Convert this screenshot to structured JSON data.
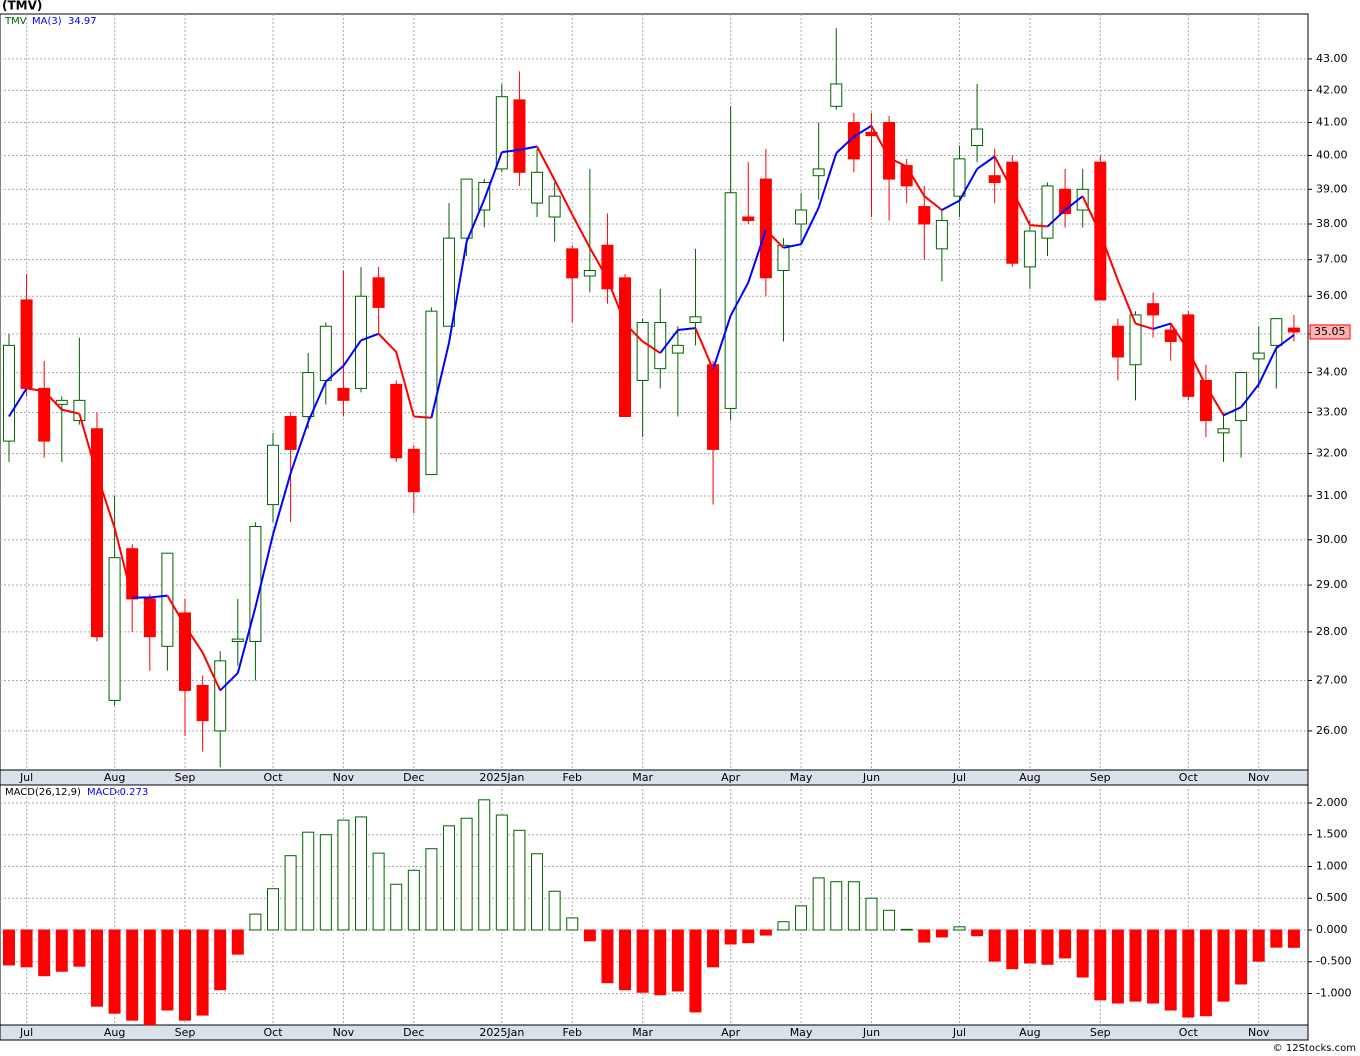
{
  "chart_data": [
    {
      "type": "candlestick",
      "title": "(TMV)",
      "name": "TMV",
      "log_scale": true,
      "grid": true,
      "up_color": "#006400",
      "down_color": "#ff0000",
      "categories": [
        null,
        null,
        null,
        null,
        null,
        null,
        null,
        null,
        null,
        null,
        null,
        null,
        null,
        null,
        null,
        null,
        null,
        null,
        null,
        null,
        null,
        null,
        null,
        null,
        null,
        null,
        null,
        null,
        null,
        null,
        null,
        null,
        null,
        null,
        null,
        null,
        null,
        null,
        null,
        null,
        null,
        null,
        null,
        null,
        null,
        null,
        null,
        null,
        null,
        null,
        null,
        null,
        null,
        null,
        null,
        null,
        null,
        null,
        null,
        null,
        null,
        null,
        null,
        null,
        null,
        null,
        null,
        null,
        null,
        null,
        null,
        null,
        null,
        null
      ],
      "open": [
        32.3,
        35.9,
        33.6,
        33.2,
        32.8,
        32.6,
        26.6,
        29.8,
        28.7,
        27.7,
        28.4,
        26.9,
        26.0,
        27.8,
        27.8,
        30.8,
        32.9,
        32.9,
        33.8,
        33.6,
        33.6,
        36.5,
        33.7,
        32.1,
        31.5,
        35.2,
        37.6,
        38.4,
        39.6,
        41.7,
        38.6,
        38.2,
        37.3,
        36.55,
        37.4,
        36.5,
        33.8,
        34.1,
        34.5,
        35.3,
        34.2,
        33.1,
        38.2,
        39.3,
        36.7,
        38.0,
        39.4,
        41.5,
        41.0,
        40.7,
        41.0,
        39.7,
        38.5,
        37.3,
        38.8,
        40.3,
        39.4,
        39.8,
        36.8,
        37.6,
        39.0,
        38.4,
        39.8,
        35.2,
        34.2,
        35.8,
        35.1,
        35.5,
        33.8,
        32.5,
        32.8,
        34.35,
        34.7,
        35.15
      ],
      "high": [
        35.0,
        36.6,
        34.3,
        33.4,
        34.9,
        33.0,
        31.0,
        29.9,
        28.8,
        29.7,
        28.7,
        27.1,
        27.6,
        28.7,
        30.4,
        32.5,
        33.0,
        34.5,
        35.3,
        36.7,
        36.8,
        36.8,
        33.8,
        32.2,
        35.7,
        38.6,
        39.3,
        39.3,
        42.2,
        42.6,
        40.2,
        39.2,
        37.4,
        39.6,
        38.3,
        36.6,
        35.4,
        36.2,
        35.2,
        37.3,
        34.3,
        41.5,
        39.8,
        40.2,
        37.6,
        38.9,
        41.0,
        44.0,
        41.3,
        41.3,
        41.2,
        39.9,
        39.1,
        38.4,
        40.3,
        42.2,
        40.2,
        40.0,
        38.1,
        39.2,
        39.6,
        39.6,
        40.0,
        35.4,
        35.6,
        36.1,
        35.3,
        35.6,
        34.2,
        33.0,
        34.0,
        35.2,
        35.4,
        35.5
      ],
      "low": [
        31.8,
        33.4,
        31.9,
        31.8,
        32.7,
        27.8,
        26.5,
        28.0,
        27.2,
        27.2,
        25.9,
        25.6,
        25.3,
        27.3,
        27.0,
        30.4,
        30.4,
        32.6,
        33.2,
        32.9,
        33.5,
        35.0,
        31.8,
        30.6,
        31.5,
        35.2,
        37.1,
        37.9,
        39.5,
        39.1,
        38.2,
        37.5,
        35.3,
        36.1,
        35.8,
        32.9,
        32.4,
        33.6,
        32.9,
        34.7,
        30.8,
        32.8,
        38.0,
        36.0,
        34.8,
        37.4,
        38.7,
        41.4,
        39.5,
        38.2,
        38.1,
        38.6,
        37.0,
        36.4,
        38.2,
        39.8,
        38.6,
        36.8,
        36.2,
        37.1,
        37.9,
        37.9,
        35.9,
        33.8,
        33.3,
        34.9,
        34.3,
        33.3,
        32.4,
        31.8,
        31.9,
        33.6,
        33.6,
        34.8
      ],
      "close": [
        34.7,
        33.6,
        32.3,
        33.3,
        33.3,
        27.9,
        29.6,
        28.7,
        27.9,
        29.7,
        26.8,
        26.2,
        27.4,
        27.85,
        30.3,
        32.2,
        32.1,
        34.0,
        35.2,
        33.3,
        36.0,
        35.7,
        31.9,
        31.1,
        35.6,
        37.6,
        39.3,
        39.2,
        41.8,
        39.5,
        39.5,
        38.8,
        36.5,
        36.7,
        36.2,
        32.9,
        35.3,
        35.3,
        34.7,
        35.45,
        32.1,
        38.9,
        38.1,
        36.5,
        37.4,
        38.4,
        39.6,
        42.2,
        39.9,
        40.6,
        39.3,
        39.1,
        38.0,
        38.1,
        39.9,
        40.8,
        39.2,
        36.9,
        37.8,
        39.1,
        38.3,
        39.0,
        35.9,
        34.4,
        35.5,
        35.5,
        34.8,
        33.4,
        32.8,
        32.6,
        34.0,
        34.5,
        35.4,
        35.05
      ],
      "ma": {
        "name": "MA(3)",
        "rise_color": "#0000ff",
        "fall_color": "#ff0000",
        "values": [
          32.9,
          33.6,
          33.53,
          33.07,
          32.97,
          31.5,
          30.27,
          28.73,
          28.73,
          28.77,
          28.13,
          27.57,
          26.8,
          27.15,
          28.52,
          30.12,
          31.53,
          32.77,
          33.77,
          34.17,
          34.83,
          35.0,
          34.53,
          32.9,
          32.87,
          34.77,
          37.5,
          38.7,
          40.1,
          40.17,
          40.27,
          39.27,
          38.27,
          37.33,
          36.47,
          35.27,
          34.8,
          34.5,
          35.1,
          35.15,
          34.08,
          35.48,
          36.37,
          37.83,
          37.33,
          37.43,
          38.47,
          40.07,
          40.57,
          40.9,
          39.93,
          39.67,
          38.8,
          38.4,
          38.67,
          39.6,
          39.97,
          38.97,
          37.97,
          37.93,
          38.4,
          38.8,
          37.73,
          36.43,
          35.27,
          35.13,
          35.27,
          34.57,
          33.67,
          32.93,
          33.13,
          33.7,
          34.63,
          34.97
        ]
      },
      "xlim": [
        -0.51,
        73.8
      ],
      "xticks": [
        {
          "value": 1,
          "label": "Jul"
        },
        {
          "value": 6,
          "label": "Aug"
        },
        {
          "value": 10,
          "label": "Sep"
        },
        {
          "value": 15,
          "label": "Oct"
        },
        {
          "value": 19,
          "label": "Nov"
        },
        {
          "value": 23,
          "label": "Dec"
        },
        {
          "value": 28,
          "label": "2025Jan"
        },
        {
          "value": 32,
          "label": "Feb"
        },
        {
          "value": 36,
          "label": "Mar"
        },
        {
          "value": 41,
          "label": "Apr"
        },
        {
          "value": 45,
          "label": "May"
        },
        {
          "value": 49,
          "label": "Jun"
        },
        {
          "value": 54,
          "label": "Jul"
        },
        {
          "value": 58,
          "label": "Aug"
        },
        {
          "value": 62,
          "label": "Sep"
        },
        {
          "value": 67,
          "label": "Oct"
        },
        {
          "value": 71,
          "label": "Nov"
        }
      ],
      "ylim": [
        25.25,
        44.47
      ],
      "yticks": [
        {
          "value": 26,
          "label": "26.00"
        },
        {
          "value": 27,
          "label": "27.00"
        },
        {
          "value": 28,
          "label": "28.00"
        },
        {
          "value": 29,
          "label": "29.00"
        },
        {
          "value": 30,
          "label": "30.00"
        },
        {
          "value": 31,
          "label": "31.00"
        },
        {
          "value": 32,
          "label": "32.00"
        },
        {
          "value": 33,
          "label": "33.00"
        },
        {
          "value": 34,
          "label": "34.00"
        },
        {
          "value": 35,
          "label": "35.00"
        },
        {
          "value": 36,
          "label": "36.00"
        },
        {
          "value": 37,
          "label": "37.00"
        },
        {
          "value": 38,
          "label": "38.00"
        },
        {
          "value": 39,
          "label": "39.00"
        },
        {
          "value": 40,
          "label": "40.00"
        },
        {
          "value": 41,
          "label": "41.00"
        },
        {
          "value": 42,
          "label": "42.00"
        },
        {
          "value": 43,
          "label": "43.00"
        }
      ],
      "source": "© 12Stocks.com"
    },
    {
      "type": "bar",
      "name": "MACD(26,12,9)",
      "current_label": "MACD:",
      "grid": true,
      "pos_color": "#006400",
      "neg_color": "#ff0000",
      "values": [
        -0.55,
        -0.58,
        -0.72,
        -0.65,
        -0.57,
        -1.2,
        -1.31,
        -1.42,
        -1.49,
        -1.26,
        -1.42,
        -1.34,
        -0.94,
        -0.38,
        0.25,
        0.65,
        1.17,
        1.54,
        1.5,
        1.73,
        1.78,
        1.21,
        0.72,
        0.94,
        1.28,
        1.64,
        1.76,
        2.05,
        1.81,
        1.57,
        1.2,
        0.61,
        0.19,
        -0.17,
        -0.83,
        -0.94,
        -0.98,
        -1.02,
        -0.96,
        -1.29,
        -0.58,
        -0.22,
        -0.2,
        -0.08,
        0.13,
        0.38,
        0.82,
        0.76,
        0.76,
        0.5,
        0.31,
        0.01,
        -0.19,
        -0.11,
        0.05,
        -0.09,
        -0.49,
        -0.61,
        -0.52,
        -0.54,
        -0.44,
        -0.74,
        -1.1,
        -1.15,
        -1.12,
        -1.15,
        -1.26,
        -1.37,
        -1.35,
        -1.12,
        -0.85,
        -0.49,
        -0.27,
        -0.273
      ],
      "xlim": [
        -0.51,
        73.8
      ],
      "xticks": [
        {
          "value": 1,
          "label": "Jul"
        },
        {
          "value": 6,
          "label": "Aug"
        },
        {
          "value": 10,
          "label": "Sep"
        },
        {
          "value": 15,
          "label": "Oct"
        },
        {
          "value": 19,
          "label": "Nov"
        },
        {
          "value": 23,
          "label": "Dec"
        },
        {
          "value": 28,
          "label": "2025Jan"
        },
        {
          "value": 32,
          "label": "Feb"
        },
        {
          "value": 36,
          "label": "Mar"
        },
        {
          "value": 41,
          "label": "Apr"
        },
        {
          "value": 45,
          "label": "May"
        },
        {
          "value": 49,
          "label": "Jun"
        },
        {
          "value": 54,
          "label": "Jul"
        },
        {
          "value": 58,
          "label": "Aug"
        },
        {
          "value": 62,
          "label": "Sep"
        },
        {
          "value": 67,
          "label": "Oct"
        },
        {
          "value": 71,
          "label": "Nov"
        }
      ],
      "ylim": [
        -1.496,
        2.283
      ],
      "yticks": [
        {
          "value": -1,
          "label": "-1.000"
        },
        {
          "value": -0.5,
          "label": "-0.500"
        },
        {
          "value": 0,
          "label": "0.000"
        },
        {
          "value": 0.5,
          "label": "0.500"
        },
        {
          "value": 1,
          "label": "1.000"
        },
        {
          "value": 1.5,
          "label": "1.500"
        },
        {
          "value": 2,
          "label": "2.000"
        }
      ]
    }
  ]
}
